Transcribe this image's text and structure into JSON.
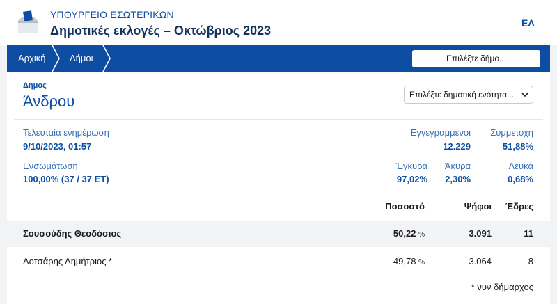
{
  "header": {
    "ministry": "ΥΠΟΥΡΓΕΙΟ ΕΣΩΤΕΡΙΚΩΝ",
    "election_title": "Δημοτικές εκλογές – Οκτώβριος 2023",
    "language": "ΕΛ",
    "logo_icon": "ballot-box-icon"
  },
  "nav": {
    "breadcrumb": [
      "Αρχική",
      "Δήμοι"
    ],
    "select_municipality": "Επιλέξτε δήμο..."
  },
  "municipality": {
    "label": "Δημος",
    "name": "Άνδρου",
    "unit_select": "Επιλέξτε δημοτική ενότητα..."
  },
  "stats": {
    "last_update_label": "Τελευταία ενημέρωση",
    "last_update_value": "9/10/2023, 01:57",
    "registered_label": "Εγγεγραμμένοι",
    "registered_value": "12.229",
    "turnout_label": "Συμμετοχή",
    "turnout_value": "51,88%",
    "integration_label": "Ενσωμάτωση",
    "integration_value": "100,00% (37 / 37 ΕΤ)",
    "valid_label": "Έγκυρα",
    "valid_value": "97,02%",
    "invalid_label": "Άκυρα",
    "invalid_value": "2,30%",
    "blank_label": "Λευκά",
    "blank_value": "0,68%"
  },
  "table": {
    "headers": {
      "percent": "Ποσοστό",
      "votes": "Ψήφοι",
      "seats": "Έδρες"
    },
    "rows": [
      {
        "name": "Σουσούδης Θεοδόσιος",
        "percent": "50,22",
        "percent_unit": "%",
        "votes": "3.091",
        "seats": "11"
      },
      {
        "name": "Λοτσάρης Δημήτριος *",
        "percent": "49,78",
        "percent_unit": "%",
        "votes": "3.064",
        "seats": "8"
      }
    ],
    "footnote": "* νυν δήμαρχος"
  },
  "colors": {
    "primary": "#0d4ea3",
    "navy": "#14325c",
    "background": "#f2f3f5"
  }
}
